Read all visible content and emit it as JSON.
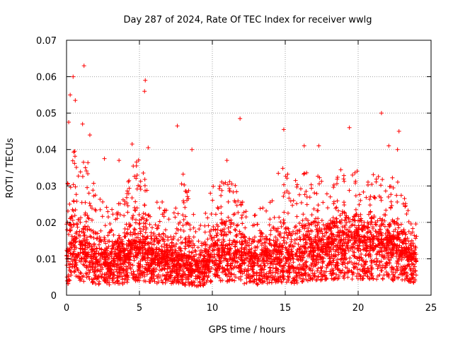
{
  "chart_data": {
    "type": "scatter",
    "title": "Day 287 of 2024, Rate Of TEC Index for receiver wwlg",
    "xlabel": "GPS time / hours",
    "ylabel": "ROTI / TECUs",
    "xlim": [
      0,
      25
    ],
    "ylim": [
      0,
      0.07
    ],
    "xticks": [
      0,
      5,
      10,
      15,
      20,
      25
    ],
    "yticks": [
      0,
      0.01,
      0.02,
      0.03,
      0.04,
      0.05,
      0.06,
      0.07
    ],
    "xtick_labels": [
      "0",
      "5",
      "10",
      "15",
      "20",
      "25"
    ],
    "ytick_labels": [
      "0",
      "0.01",
      "0.02",
      "0.03",
      "0.04",
      "0.05",
      "0.06",
      "0.07"
    ],
    "grid": true,
    "marker": "+",
    "series_color": "#ff0000",
    "data_extent_hours": [
      0,
      24
    ],
    "notable_points": [
      {
        "x": 0.25,
        "y": 0.055
      },
      {
        "x": 0.45,
        "y": 0.06
      },
      {
        "x": 0.6,
        "y": 0.0535
      },
      {
        "x": 1.2,
        "y": 0.063
      },
      {
        "x": 0.15,
        "y": 0.0475
      },
      {
        "x": 1.1,
        "y": 0.047
      },
      {
        "x": 1.6,
        "y": 0.044
      },
      {
        "x": 2.6,
        "y": 0.0375
      },
      {
        "x": 3.6,
        "y": 0.037
      },
      {
        "x": 4.5,
        "y": 0.0415
      },
      {
        "x": 5.4,
        "y": 0.059
      },
      {
        "x": 5.35,
        "y": 0.056
      },
      {
        "x": 5.6,
        "y": 0.0405
      },
      {
        "x": 7.6,
        "y": 0.0465
      },
      {
        "x": 8.6,
        "y": 0.04
      },
      {
        "x": 11.0,
        "y": 0.037
      },
      {
        "x": 11.9,
        "y": 0.0485
      },
      {
        "x": 14.9,
        "y": 0.0455
      },
      {
        "x": 16.3,
        "y": 0.041
      },
      {
        "x": 17.3,
        "y": 0.041
      },
      {
        "x": 19.4,
        "y": 0.046
      },
      {
        "x": 21.6,
        "y": 0.05
      },
      {
        "x": 22.1,
        "y": 0.041
      },
      {
        "x": 22.8,
        "y": 0.045
      },
      {
        "x": 22.7,
        "y": 0.04
      }
    ],
    "envelope": {
      "hours": [
        0,
        0.5,
        1,
        1.5,
        2,
        2.5,
        3,
        3.5,
        4,
        4.5,
        5,
        5.5,
        6,
        6.5,
        7,
        7.5,
        8,
        8.5,
        9,
        9.5,
        10,
        10.5,
        11,
        11.5,
        12,
        12.5,
        13,
        13.5,
        14,
        14.5,
        15,
        15.5,
        16,
        16.5,
        17,
        17.5,
        18,
        18.5,
        19,
        19.5,
        20,
        20.5,
        21,
        21.5,
        22,
        22.5,
        23,
        23.5,
        24
      ],
      "center": [
        0.0085,
        0.011,
        0.0105,
        0.0105,
        0.0085,
        0.008,
        0.008,
        0.008,
        0.009,
        0.0105,
        0.011,
        0.0105,
        0.009,
        0.0085,
        0.0085,
        0.008,
        0.008,
        0.0075,
        0.0065,
        0.0075,
        0.0105,
        0.011,
        0.0105,
        0.0105,
        0.009,
        0.009,
        0.008,
        0.009,
        0.009,
        0.0095,
        0.0095,
        0.009,
        0.0095,
        0.0105,
        0.0115,
        0.0115,
        0.0115,
        0.0115,
        0.012,
        0.0125,
        0.0125,
        0.011,
        0.0125,
        0.0125,
        0.011,
        0.0115,
        0.0105,
        0.009,
        0.009
      ],
      "upper": [
        0.03,
        0.04,
        0.036,
        0.038,
        0.028,
        0.026,
        0.024,
        0.025,
        0.028,
        0.036,
        0.038,
        0.033,
        0.029,
        0.026,
        0.026,
        0.025,
        0.034,
        0.027,
        0.018,
        0.024,
        0.032,
        0.03,
        0.034,
        0.032,
        0.027,
        0.026,
        0.022,
        0.026,
        0.028,
        0.034,
        0.036,
        0.03,
        0.035,
        0.034,
        0.034,
        0.032,
        0.03,
        0.033,
        0.036,
        0.036,
        0.034,
        0.03,
        0.034,
        0.035,
        0.028,
        0.035,
        0.03,
        0.022,
        0.02
      ]
    }
  }
}
